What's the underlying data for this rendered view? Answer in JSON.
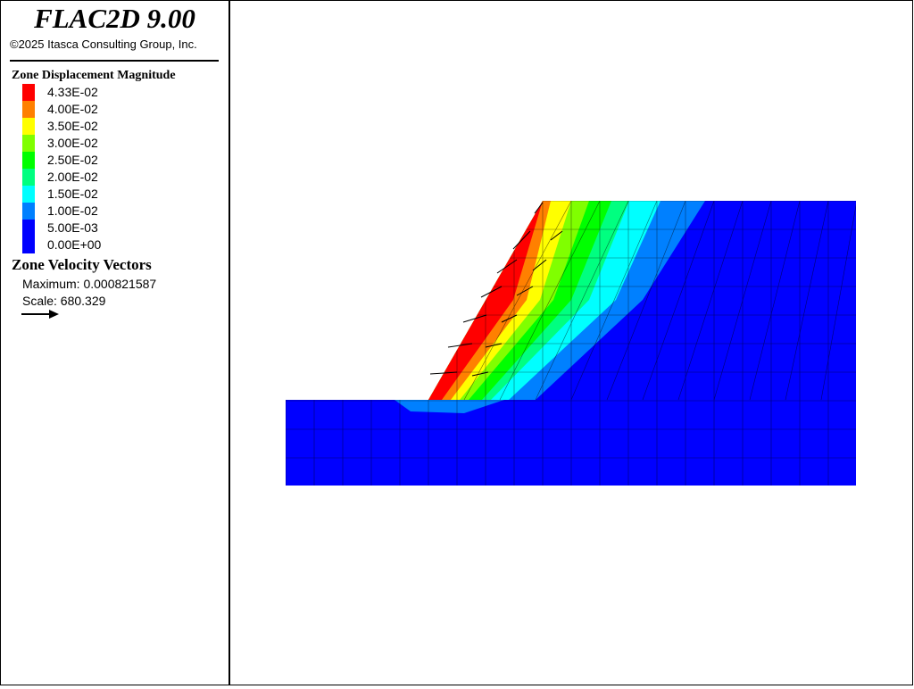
{
  "header": {
    "title": "FLAC2D 9.00",
    "copyright": "©2025 Itasca Consulting Group, Inc."
  },
  "legend": {
    "title": "Zone Displacement Magnitude",
    "items": [
      {
        "label": "4.33E-02",
        "color": "#ff0000"
      },
      {
        "label": "4.00E-02",
        "color": "#ff8000"
      },
      {
        "label": "3.50E-02",
        "color": "#ffff00"
      },
      {
        "label": "3.00E-02",
        "color": "#80ff00"
      },
      {
        "label": "2.50E-02",
        "color": "#00ff00"
      },
      {
        "label": "2.00E-02",
        "color": "#00ff80"
      },
      {
        "label": "1.50E-02",
        "color": "#00ffff"
      },
      {
        "label": "1.00E-02",
        "color": "#0080ff"
      },
      {
        "label": "5.00E-03",
        "color": "#0000ff"
      },
      {
        "label": "0.00E+00",
        "color": "#0000ff"
      }
    ]
  },
  "vectors": {
    "title": "Zone Velocity Vectors",
    "maximum": "Maximum: 0.000821587",
    "scale": "Scale: 680.329"
  }
}
